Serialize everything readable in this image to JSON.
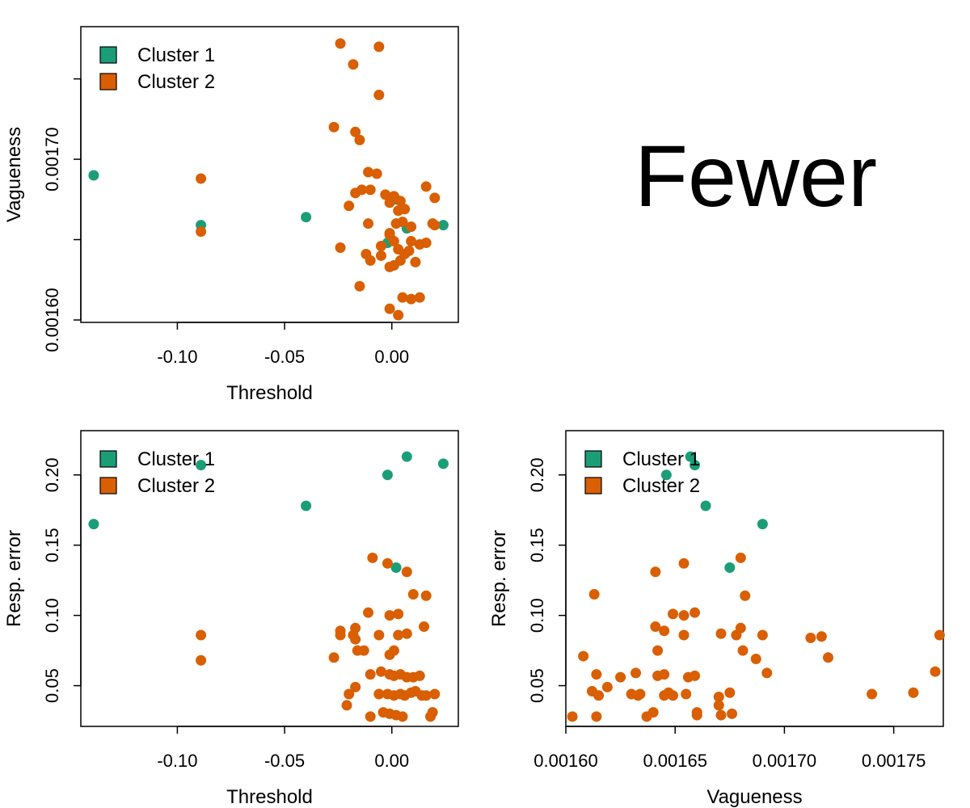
{
  "title": "Fewer",
  "colors": {
    "cluster1": "#1B9E77",
    "cluster2": "#D95F02"
  },
  "chart_data": [
    {
      "type": "scatter",
      "xlabel": "Threshold",
      "ylabel": "Vagueness",
      "xlim": [
        -0.145,
        0.031
      ],
      "ylim": [
        0.0015985,
        0.0017825
      ],
      "xticks": [
        -0.1,
        -0.05,
        0.0
      ],
      "xtick_labels": [
        "-0.10",
        "-0.05",
        "0.00"
      ],
      "yticks": [
        0.0016,
        0.00165,
        0.0017,
        0.00175
      ],
      "ytick_labels": [
        "0.00160",
        "",
        "0.00170",
        ""
      ],
      "legend": {
        "position": "top-left",
        "entries": [
          "Cluster 1",
          "Cluster 2"
        ]
      },
      "series": [
        {
          "name": "Cluster 1",
          "color": "#1B9E77",
          "points": [
            [
              -0.139,
              0.00169
            ],
            [
              -0.089,
              0.001659
            ],
            [
              -0.04,
              0.001664
            ],
            [
              -0.002,
              0.001648
            ],
            [
              0.002,
              0.001675
            ],
            [
              0.007,
              0.001657
            ],
            [
              0.024,
              0.001659
            ]
          ]
        },
        {
          "name": "Cluster 2",
          "color": "#D95F02",
          "points": [
            [
              -0.089,
              0.001688
            ],
            [
              -0.089,
              0.001655
            ],
            [
              -0.024,
              0.001772
            ],
            [
              -0.006,
              0.00177
            ],
            [
              -0.018,
              0.001759
            ],
            [
              -0.006,
              0.00174
            ],
            [
              -0.027,
              0.00172
            ],
            [
              -0.017,
              0.001717
            ],
            [
              -0.015,
              0.001712
            ],
            [
              -0.011,
              0.001692
            ],
            [
              -0.007,
              0.001691
            ],
            [
              -0.01,
              0.001681
            ],
            [
              -0.014,
              0.001681
            ],
            [
              -0.017,
              0.001679
            ],
            [
              -0.02,
              0.001671
            ],
            [
              -0.003,
              0.001678
            ],
            [
              0.001,
              0.001677
            ],
            [
              0.004,
              0.001674
            ],
            [
              -0.001,
              0.001673
            ],
            [
              0.003,
              0.001668
            ],
            [
              0.006,
              0.001669
            ],
            [
              0.016,
              0.001683
            ],
            [
              0.02,
              0.001676
            ],
            [
              -0.011,
              0.00166
            ],
            [
              -0.001,
              0.001654
            ],
            [
              0.002,
              0.00166
            ],
            [
              0.005,
              0.001661
            ],
            [
              0.009,
              0.001658
            ],
            [
              0.019,
              0.00166
            ],
            [
              0.02,
              0.001659
            ],
            [
              -0.024,
              0.001645
            ],
            [
              -0.012,
              0.001641
            ],
            [
              -0.01,
              0.001637
            ],
            [
              -0.005,
              0.001646
            ],
            [
              -0.001,
              0.001653
            ],
            [
              0.001,
              0.001649
            ],
            [
              0.003,
              0.001644
            ],
            [
              0.006,
              0.001641
            ],
            [
              0.009,
              0.001649
            ],
            [
              0.013,
              0.001647
            ],
            [
              0.016,
              0.001648
            ],
            [
              0.008,
              0.001643
            ],
            [
              0.004,
              0.001637
            ],
            [
              0.001,
              0.001634
            ],
            [
              -0.001,
              0.001633
            ],
            [
              -0.005,
              0.00164
            ],
            [
              0.011,
              0.001636
            ],
            [
              -0.015,
              0.001621
            ],
            [
              -0.001,
              0.001607
            ],
            [
              0.005,
              0.001614
            ],
            [
              0.009,
              0.001613
            ],
            [
              0.013,
              0.001614
            ],
            [
              0.003,
              0.001603
            ]
          ]
        }
      ]
    },
    {
      "type": "scatter",
      "xlabel": "Threshold",
      "ylabel": "Resp. error",
      "xlim": [
        -0.145,
        0.031
      ],
      "ylim": [
        0.021,
        0.2315
      ],
      "xticks": [
        -0.1,
        -0.05,
        0.0
      ],
      "xtick_labels": [
        "-0.10",
        "-0.05",
        "0.00"
      ],
      "yticks": [
        0.05,
        0.1,
        0.15,
        0.2
      ],
      "ytick_labels": [
        "0.05",
        "0.10",
        "0.15",
        "0.20"
      ],
      "legend": {
        "position": "top-left",
        "entries": [
          "Cluster 1",
          "Cluster 2"
        ]
      },
      "series": [
        {
          "name": "Cluster 1",
          "color": "#1B9E77",
          "points": [
            [
              -0.139,
              0.165
            ],
            [
              -0.089,
              0.207
            ],
            [
              -0.04,
              0.178
            ],
            [
              -0.002,
              0.2
            ],
            [
              0.002,
              0.134
            ],
            [
              0.007,
              0.213
            ],
            [
              0.024,
              0.208
            ]
          ]
        },
        {
          "name": "Cluster 2",
          "color": "#D95F02",
          "points": [
            [
              -0.089,
              0.086
            ],
            [
              -0.089,
              0.068
            ],
            [
              -0.009,
              0.141
            ],
            [
              -0.002,
              0.137
            ],
            [
              0.007,
              0.131
            ],
            [
              0.01,
              0.115
            ],
            [
              0.016,
              0.114
            ],
            [
              -0.011,
              0.102
            ],
            [
              -0.001,
              0.1
            ],
            [
              0.003,
              0.101
            ],
            [
              -0.024,
              0.089
            ],
            [
              -0.024,
              0.086
            ],
            [
              -0.017,
              0.091
            ],
            [
              -0.018,
              0.086
            ],
            [
              -0.017,
              0.083
            ],
            [
              -0.006,
              0.086
            ],
            [
              0.003,
              0.086
            ],
            [
              0.007,
              0.087
            ],
            [
              0.015,
              0.092
            ],
            [
              -0.016,
              0.075
            ],
            [
              -0.013,
              0.075
            ],
            [
              -0.001,
              0.072
            ],
            [
              0.001,
              0.075
            ],
            [
              -0.027,
              0.07
            ],
            [
              -0.01,
              0.058
            ],
            [
              -0.005,
              0.06
            ],
            [
              -0.001,
              0.058
            ],
            [
              0.001,
              0.057
            ],
            [
              0.004,
              0.058
            ],
            [
              0.007,
              0.056
            ],
            [
              0.01,
              0.056
            ],
            [
              0.013,
              0.057
            ],
            [
              -0.017,
              0.049
            ],
            [
              -0.02,
              0.044
            ],
            [
              -0.006,
              0.044
            ],
            [
              -0.002,
              0.044
            ],
            [
              0.001,
              0.043
            ],
            [
              0.004,
              0.044
            ],
            [
              0.006,
              0.043
            ],
            [
              0.009,
              0.045
            ],
            [
              0.011,
              0.046
            ],
            [
              0.014,
              0.043
            ],
            [
              0.016,
              0.043
            ],
            [
              0.02,
              0.044
            ],
            [
              -0.021,
              0.036
            ],
            [
              -0.01,
              0.028
            ],
            [
              -0.004,
              0.031
            ],
            [
              -0.001,
              0.03
            ],
            [
              0.002,
              0.029
            ],
            [
              0.005,
              0.028
            ],
            [
              0.018,
              0.028
            ],
            [
              0.019,
              0.031
            ]
          ]
        }
      ]
    },
    {
      "type": "scatter",
      "xlabel": "Vagueness",
      "ylabel": "Resp. error",
      "xlim": [
        0.0016,
        0.0017727
      ],
      "ylim": [
        0.021,
        0.2315
      ],
      "xticks": [
        0.0016,
        0.00165,
        0.0017,
        0.00175
      ],
      "xtick_labels": [
        "0.00160",
        "0.00165",
        "0.00170",
        "0.00175"
      ],
      "yticks": [
        0.05,
        0.1,
        0.15,
        0.2
      ],
      "ytick_labels": [
        "0.05",
        "0.10",
        "0.15",
        "0.20"
      ],
      "legend": {
        "position": "top-left",
        "entries": [
          "Cluster 1",
          "Cluster 2"
        ]
      },
      "series": [
        {
          "name": "Cluster 1",
          "color": "#1B9E77",
          "points": [
            [
              0.001646,
              0.2
            ],
            [
              0.001657,
              0.213
            ],
            [
              0.001659,
              0.207
            ],
            [
              0.001664,
              0.178
            ],
            [
              0.00169,
              0.165
            ],
            [
              0.001675,
              0.134
            ]
          ]
        },
        {
          "name": "Cluster 2",
          "color": "#D95F02",
          "points": [
            [
              0.00168,
              0.141
            ],
            [
              0.001654,
              0.137
            ],
            [
              0.001641,
              0.131
            ],
            [
              0.001613,
              0.115
            ],
            [
              0.001682,
              0.114
            ],
            [
              0.001649,
              0.101
            ],
            [
              0.001654,
              0.1
            ],
            [
              0.001659,
              0.102
            ],
            [
              0.001641,
              0.092
            ],
            [
              0.001645,
              0.089
            ],
            [
              0.00168,
              0.091
            ],
            [
              0.001671,
              0.087
            ],
            [
              0.001678,
              0.086
            ],
            [
              0.00169,
              0.086
            ],
            [
              0.001654,
              0.086
            ],
            [
              0.001712,
              0.084
            ],
            [
              0.001717,
              0.085
            ],
            [
              0.001771,
              0.086
            ],
            [
              0.001642,
              0.075
            ],
            [
              0.001681,
              0.075
            ],
            [
              0.001687,
              0.069
            ],
            [
              0.001608,
              0.071
            ],
            [
              0.00172,
              0.07
            ],
            [
              0.001614,
              0.058
            ],
            [
              0.001625,
              0.056
            ],
            [
              0.001632,
              0.059
            ],
            [
              0.001642,
              0.057
            ],
            [
              0.001645,
              0.058
            ],
            [
              0.001656,
              0.056
            ],
            [
              0.001659,
              0.057
            ],
            [
              0.001692,
              0.059
            ],
            [
              0.001769,
              0.06
            ],
            [
              0.001619,
              0.049
            ],
            [
              0.001612,
              0.046
            ],
            [
              0.001615,
              0.043
            ],
            [
              0.00163,
              0.044
            ],
            [
              0.001633,
              0.043
            ],
            [
              0.001634,
              0.044
            ],
            [
              0.001645,
              0.043
            ],
            [
              0.001647,
              0.045
            ],
            [
              0.001649,
              0.043
            ],
            [
              0.001655,
              0.044
            ],
            [
              0.00167,
              0.042
            ],
            [
              0.001675,
              0.045
            ],
            [
              0.00174,
              0.044
            ],
            [
              0.001759,
              0.045
            ],
            [
              0.00167,
              0.036
            ],
            [
              0.001603,
              0.028
            ],
            [
              0.001614,
              0.028
            ],
            [
              0.001637,
              0.028
            ],
            [
              0.00164,
              0.031
            ],
            [
              0.00166,
              0.031
            ],
            [
              0.00166,
              0.029
            ],
            [
              0.001671,
              0.029
            ],
            [
              0.001676,
              0.03
            ]
          ]
        }
      ]
    }
  ]
}
